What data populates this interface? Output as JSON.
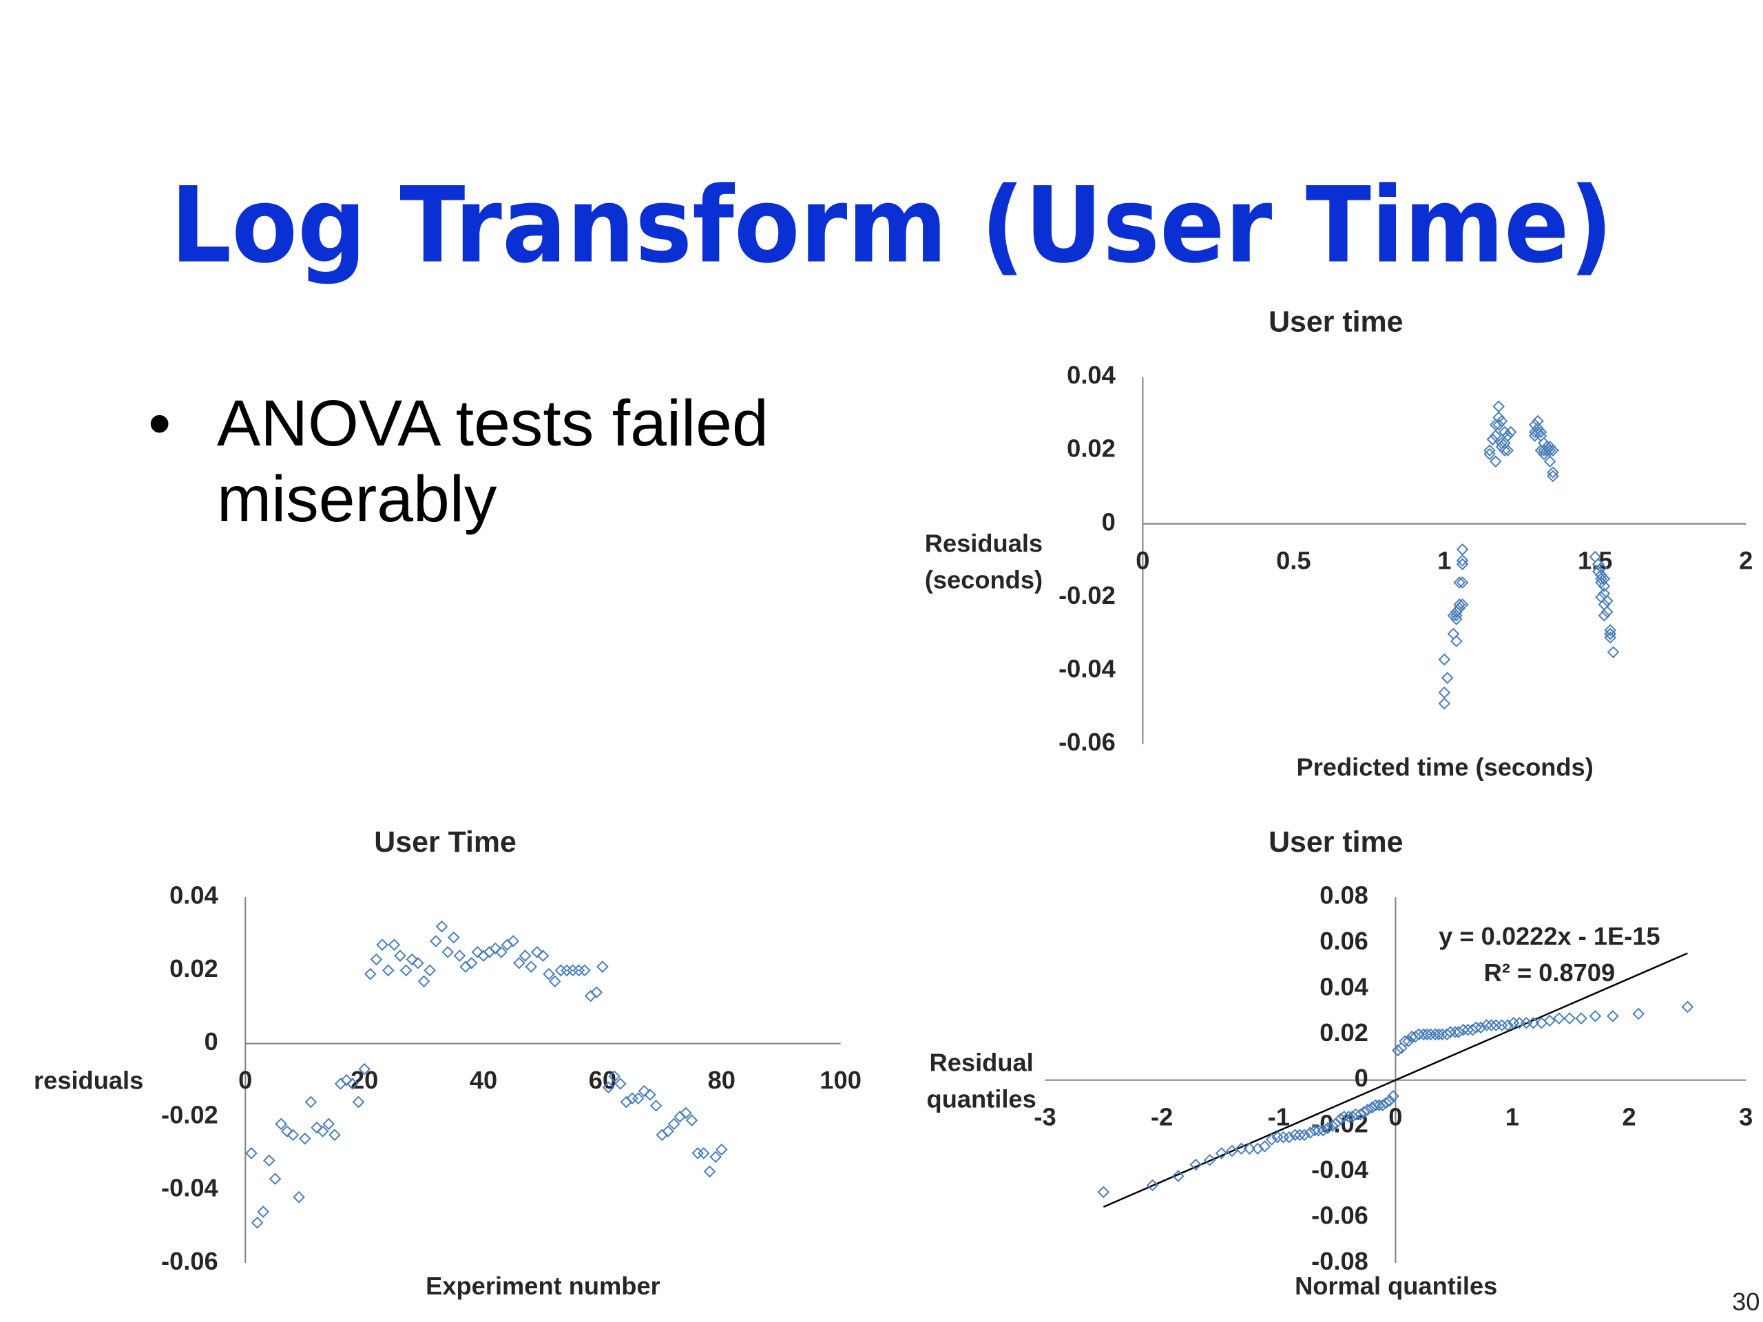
{
  "slide": {
    "title": "Log Transform (User Time)",
    "bullets": [
      "ANOVA tests failed miserably"
    ],
    "page_number": "30"
  },
  "chart_data": [
    {
      "type": "scatter",
      "title": "User time",
      "xlabel": "Predicted time (seconds)",
      "ylabel": "Residuals (seconds)",
      "color": "#4a7ebb",
      "grid": false,
      "xlim": [
        0,
        2
      ],
      "xticks": [
        0,
        0.5,
        1,
        1.5,
        2
      ],
      "ylim": [
        -0.06,
        0.04
      ],
      "yticks": [
        -0.06,
        -0.04,
        -0.02,
        0,
        0.02,
        0.04
      ],
      "x": [
        1.03,
        1.0,
        1.0,
        1.04,
        1.0,
        1.05,
        1.04,
        1.03,
        1.01,
        1.04,
        1.06,
        1.05,
        1.04,
        1.06,
        1.04,
        1.06,
        1.06,
        1.06,
        1.05,
        1.06,
        1.15,
        1.16,
        1.17,
        1.15,
        1.18,
        1.17,
        1.2,
        1.16,
        1.19,
        1.17,
        1.21,
        1.19,
        1.18,
        1.2,
        1.18,
        1.21,
        1.19,
        1.2,
        1.22,
        1.21,
        1.3,
        1.31,
        1.32,
        1.3,
        1.31,
        1.33,
        1.3,
        1.34,
        1.31,
        1.32,
        1.33,
        1.35,
        1.32,
        1.34,
        1.36,
        1.35,
        1.33,
        1.36,
        1.36,
        1.35,
        1.52,
        1.5,
        1.51,
        1.52,
        1.52,
        1.53,
        1.51,
        1.52,
        1.53,
        1.53,
        1.54,
        1.53,
        1.52,
        1.53,
        1.54,
        1.55,
        1.55,
        1.56,
        1.55,
        1.55
      ],
      "values": [
        -0.03,
        -0.049,
        -0.046,
        -0.032,
        -0.037,
        -0.022,
        -0.024,
        -0.025,
        -0.042,
        -0.026,
        -0.016,
        -0.023,
        -0.024,
        -0.022,
        -0.025,
        -0.011,
        -0.01,
        -0.011,
        -0.016,
        -0.007,
        0.019,
        0.023,
        0.027,
        0.02,
        0.027,
        0.024,
        0.02,
        0.023,
        0.022,
        0.017,
        0.02,
        0.028,
        0.032,
        0.025,
        0.029,
        0.024,
        0.021,
        0.022,
        0.025,
        0.024,
        0.025,
        0.026,
        0.025,
        0.027,
        0.028,
        0.022,
        0.024,
        0.021,
        0.025,
        0.024,
        0.019,
        0.017,
        0.02,
        0.02,
        0.02,
        0.02,
        0.02,
        0.013,
        0.014,
        0.021,
        -0.012,
        -0.009,
        -0.011,
        -0.016,
        -0.015,
        -0.015,
        -0.013,
        -0.014,
        -0.017,
        -0.025,
        -0.024,
        -0.022,
        -0.02,
        -0.019,
        -0.021,
        -0.03,
        -0.03,
        -0.035,
        -0.031,
        -0.029
      ]
    },
    {
      "type": "scatter",
      "title": "User Time",
      "xlabel": "Experiment number",
      "ylabel": "residuals",
      "color": "#4a7ebb",
      "grid": false,
      "xlim": [
        0,
        100
      ],
      "xticks": [
        0,
        20,
        40,
        60,
        80,
        100
      ],
      "ylim": [
        -0.06,
        0.04
      ],
      "yticks": [
        -0.06,
        -0.04,
        -0.02,
        0,
        0.02,
        0.04
      ],
      "x": [
        1,
        2,
        3,
        4,
        5,
        6,
        7,
        8,
        9,
        10,
        11,
        12,
        13,
        14,
        15,
        16,
        17,
        18,
        19,
        20,
        21,
        22,
        23,
        24,
        25,
        26,
        27,
        28,
        29,
        30,
        31,
        32,
        33,
        34,
        35,
        36,
        37,
        38,
        39,
        40,
        41,
        42,
        43,
        44,
        45,
        46,
        47,
        48,
        49,
        50,
        51,
        52,
        53,
        54,
        55,
        56,
        57,
        58,
        59,
        60,
        61,
        62,
        63,
        64,
        65,
        66,
        67,
        68,
        69,
        70,
        71,
        72,
        73,
        74,
        75,
        76,
        77,
        78,
        79,
        80
      ],
      "values": [
        -0.03,
        -0.049,
        -0.046,
        -0.032,
        -0.037,
        -0.022,
        -0.024,
        -0.025,
        -0.042,
        -0.026,
        -0.016,
        -0.023,
        -0.024,
        -0.022,
        -0.025,
        -0.011,
        -0.01,
        -0.011,
        -0.016,
        -0.007,
        0.019,
        0.023,
        0.027,
        0.02,
        0.027,
        0.024,
        0.02,
        0.023,
        0.022,
        0.017,
        0.02,
        0.028,
        0.032,
        0.025,
        0.029,
        0.024,
        0.021,
        0.022,
        0.025,
        0.024,
        0.025,
        0.026,
        0.025,
        0.027,
        0.028,
        0.022,
        0.024,
        0.021,
        0.025,
        0.024,
        0.019,
        0.017,
        0.02,
        0.02,
        0.02,
        0.02,
        0.02,
        0.013,
        0.014,
        0.021,
        -0.012,
        -0.009,
        -0.011,
        -0.016,
        -0.015,
        -0.015,
        -0.013,
        -0.014,
        -0.017,
        -0.025,
        -0.024,
        -0.022,
        -0.02,
        -0.019,
        -0.021,
        -0.03,
        -0.03,
        -0.035,
        -0.031,
        -0.029
      ]
    },
    {
      "type": "scatter",
      "title": "User time",
      "xlabel": "Normal quantiles",
      "ylabel": "Residual quantiles",
      "color": "#4a7ebb",
      "grid": false,
      "xlim": [
        -3,
        3
      ],
      "xticks": [
        -3,
        -2,
        -1,
        0,
        1,
        2,
        3
      ],
      "ylim": [
        -0.08,
        0.08
      ],
      "yticks": [
        -0.08,
        -0.06,
        -0.04,
        -0.02,
        0,
        0.02,
        0.04,
        0.06,
        0.08
      ],
      "x": [
        -2.5,
        -2.08,
        -1.86,
        -1.71,
        -1.59,
        -1.49,
        -1.4,
        -1.32,
        -1.25,
        -1.18,
        -1.12,
        -1.06,
        -1.01,
        -0.96,
        -0.91,
        -0.86,
        -0.82,
        -0.78,
        -0.73,
        -0.69,
        -0.66,
        -0.62,
        -0.58,
        -0.54,
        -0.51,
        -0.47,
        -0.44,
        -0.4,
        -0.37,
        -0.34,
        -0.3,
        -0.27,
        -0.24,
        -0.2,
        -0.17,
        -0.14,
        -0.11,
        -0.08,
        -0.05,
        -0.02,
        0.02,
        0.05,
        0.08,
        0.11,
        0.14,
        0.17,
        0.2,
        0.24,
        0.27,
        0.3,
        0.34,
        0.37,
        0.4,
        0.44,
        0.47,
        0.51,
        0.54,
        0.58,
        0.62,
        0.66,
        0.69,
        0.73,
        0.78,
        0.82,
        0.86,
        0.91,
        0.96,
        1.01,
        1.06,
        1.12,
        1.18,
        1.25,
        1.32,
        1.4,
        1.49,
        1.59,
        1.71,
        1.86,
        2.08,
        2.5
      ],
      "values": [
        -0.049,
        -0.046,
        -0.042,
        -0.037,
        -0.035,
        -0.032,
        -0.031,
        -0.03,
        -0.03,
        -0.03,
        -0.029,
        -0.026,
        -0.025,
        -0.025,
        -0.025,
        -0.024,
        -0.024,
        -0.024,
        -0.023,
        -0.022,
        -0.022,
        -0.022,
        -0.021,
        -0.02,
        -0.019,
        -0.017,
        -0.016,
        -0.016,
        -0.016,
        -0.015,
        -0.015,
        -0.014,
        -0.013,
        -0.012,
        -0.011,
        -0.011,
        -0.011,
        -0.01,
        -0.009,
        -0.007,
        0.013,
        0.014,
        0.017,
        0.017,
        0.019,
        0.019,
        0.02,
        0.02,
        0.02,
        0.02,
        0.02,
        0.02,
        0.02,
        0.02,
        0.021,
        0.021,
        0.021,
        0.022,
        0.022,
        0.022,
        0.023,
        0.023,
        0.024,
        0.024,
        0.024,
        0.024,
        0.024,
        0.025,
        0.025,
        0.025,
        0.025,
        0.025,
        0.026,
        0.027,
        0.027,
        0.027,
        0.028,
        0.028,
        0.029,
        0.032
      ],
      "trendline": {
        "equation": "y = 0.0222x - 1E-15",
        "r2": "R² = 0.8709",
        "slope": 0.0222,
        "intercept": -1e-15
      }
    }
  ]
}
